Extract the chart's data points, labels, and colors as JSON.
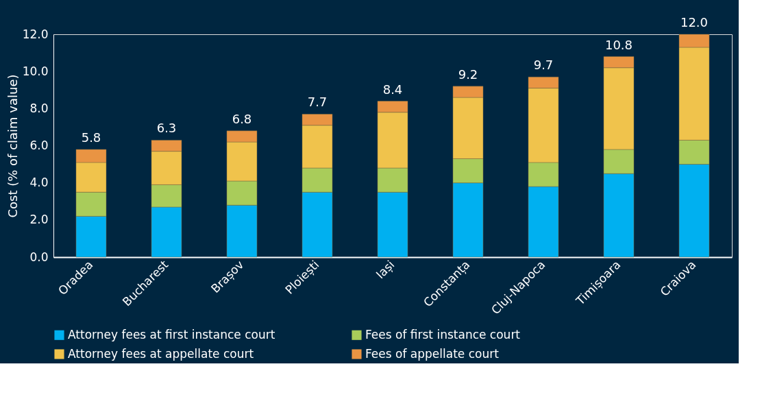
{
  "chart_data": {
    "type": "bar",
    "stacked": true,
    "ylabel": "Cost (% of claim value)",
    "categories": [
      "Oradea",
      "Bucharest",
      "Brașov",
      "Ploiești",
      "Iași",
      "Constanța",
      "Cluj-Napoca",
      "Timișoara",
      "Craiova"
    ],
    "series": [
      {
        "name": "Attorney fees at first instance court",
        "color": "#00b0f0",
        "values": [
          2.2,
          2.7,
          2.8,
          3.5,
          3.5,
          4.0,
          3.8,
          4.5,
          5.0
        ]
      },
      {
        "name": "Fees of first instance court",
        "color": "#a9cc5a",
        "values": [
          1.3,
          1.2,
          1.3,
          1.3,
          1.3,
          1.3,
          1.3,
          1.3,
          1.3
        ]
      },
      {
        "name": "Attorney fees at appellate court",
        "color": "#f0c34c",
        "values": [
          1.6,
          1.8,
          2.1,
          2.3,
          3.0,
          3.3,
          4.0,
          4.4,
          5.0
        ]
      },
      {
        "name": "Fees of appellate court",
        "color": "#e99443",
        "values": [
          0.7,
          0.6,
          0.6,
          0.6,
          0.6,
          0.6,
          0.6,
          0.6,
          0.7
        ]
      }
    ],
    "totals": [
      "5.8",
      "6.3",
      "6.8",
      "7.7",
      "8.4",
      "9.2",
      "9.7",
      "10.8",
      "12.0"
    ],
    "ylim": [
      0,
      12
    ],
    "yticks": [
      {
        "value": 0,
        "label": "0.0"
      },
      {
        "value": 2,
        "label": "2.0"
      },
      {
        "value": 4,
        "label": "4.0"
      },
      {
        "value": 6,
        "label": "6.0"
      },
      {
        "value": 8,
        "label": "8.0"
      },
      {
        "value": 10,
        "label": "10.0"
      },
      {
        "value": 12,
        "label": "12.0"
      }
    ],
    "grid": false,
    "legend": "bottom"
  }
}
